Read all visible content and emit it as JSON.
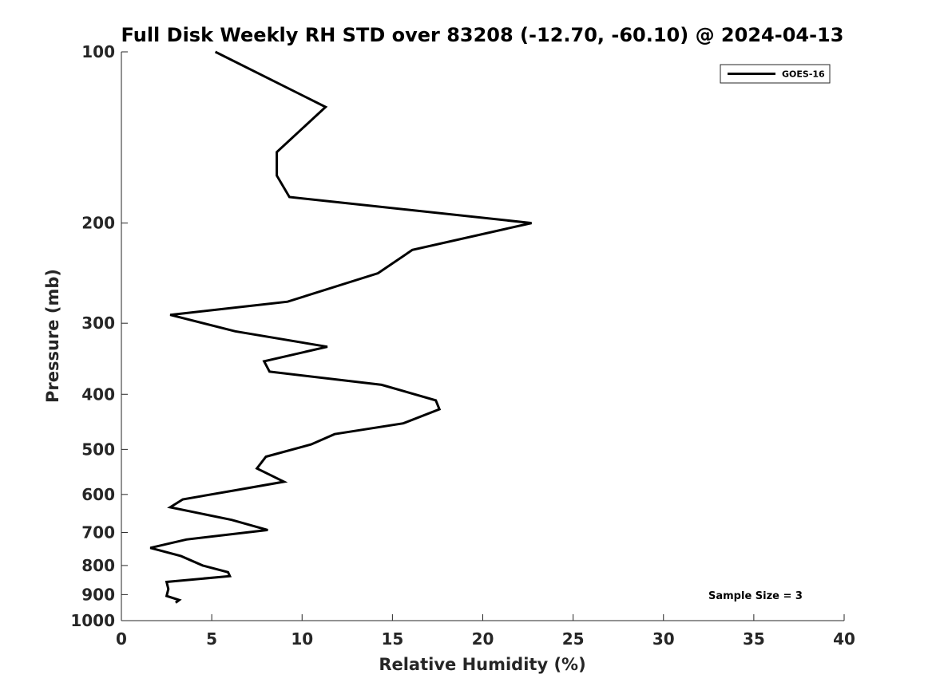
{
  "chart_data": {
    "type": "line",
    "title": "Full Disk Weekly RH STD over 83208 (-12.70, -60.10) @ 2024-04-13",
    "xlabel": "Relative Humidity (%)",
    "ylabel": "Pressure (mb)",
    "xlim": [
      0,
      40
    ],
    "ylim": [
      1000,
      100
    ],
    "yscale": "log",
    "y_reversed": true,
    "xticks": [
      0,
      5,
      10,
      15,
      20,
      25,
      30,
      35,
      40
    ],
    "yticks": [
      100,
      200,
      300,
      400,
      500,
      600,
      700,
      800,
      900,
      1000
    ],
    "grid": false,
    "legend_position": "top-right",
    "annotation": "Sample Size = 3",
    "series": [
      {
        "name": "GOES-16",
        "color": "#000000",
        "x": [
          5.2,
          11.3,
          8.6,
          8.6,
          9.3,
          22.7,
          16.1,
          14.2,
          9.2,
          2.7,
          6.3,
          11.4,
          7.9,
          8.2,
          14.4,
          17.4,
          17.6,
          15.6,
          11.8,
          10.5,
          8.0,
          7.5,
          9.0,
          6.3,
          3.4,
          2.7,
          6.1,
          8.1,
          3.6,
          1.6,
          3.3,
          4.5,
          5.9,
          6.0,
          2.5,
          2.6,
          2.5,
          3.2,
          3.0
        ],
        "y": [
          100,
          125,
          150,
          165,
          180,
          200,
          223,
          245,
          275,
          290,
          310,
          330,
          350,
          365,
          385,
          410,
          425,
          450,
          470,
          490,
          515,
          540,
          570,
          590,
          612,
          632,
          665,
          693,
          720,
          745,
          770,
          800,
          822,
          835,
          855,
          880,
          905,
          920,
          930
        ]
      }
    ]
  }
}
